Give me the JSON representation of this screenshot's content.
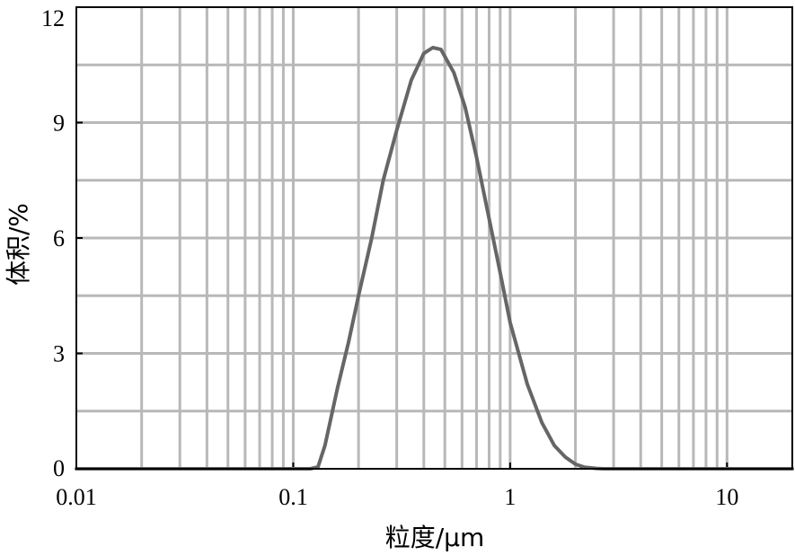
{
  "chart_data": {
    "type": "line",
    "title": "",
    "xlabel": "粒度/μm",
    "ylabel": "体积/%",
    "x_scale": "log",
    "xlim": [
      0.01,
      20
    ],
    "ylim": [
      0,
      12
    ],
    "x_ticks": [
      {
        "value": 0.01,
        "label": "0.01"
      },
      {
        "value": 0.1,
        "label": "0.1"
      },
      {
        "value": 1,
        "label": "1"
      },
      {
        "value": 10,
        "label": "10"
      }
    ],
    "y_ticks": [
      {
        "value": 0,
        "label": "0"
      },
      {
        "value": 3,
        "label": "3"
      },
      {
        "value": 6,
        "label": "6"
      },
      {
        "value": 9,
        "label": "9"
      },
      {
        "value": 12,
        "label": "12"
      }
    ],
    "grid": true,
    "line_color": "#666666",
    "grid_color": "#b8b8b8",
    "series": [
      {
        "x": [
          0.01,
          0.12,
          0.13,
          0.14,
          0.16,
          0.18,
          0.2,
          0.23,
          0.26,
          0.3,
          0.35,
          0.4,
          0.44,
          0.48,
          0.55,
          0.62,
          0.7,
          0.8,
          0.9,
          1.0,
          1.2,
          1.4,
          1.6,
          1.8,
          2.0,
          2.2,
          2.5,
          2.7,
          20
        ],
        "y": [
          0,
          0,
          0.05,
          0.6,
          2.1,
          3.3,
          4.5,
          6.0,
          7.5,
          8.8,
          10.1,
          10.8,
          10.95,
          10.9,
          10.3,
          9.4,
          8.1,
          6.5,
          5.1,
          3.8,
          2.2,
          1.2,
          0.6,
          0.3,
          0.12,
          0.04,
          0.01,
          0,
          0
        ]
      }
    ]
  }
}
